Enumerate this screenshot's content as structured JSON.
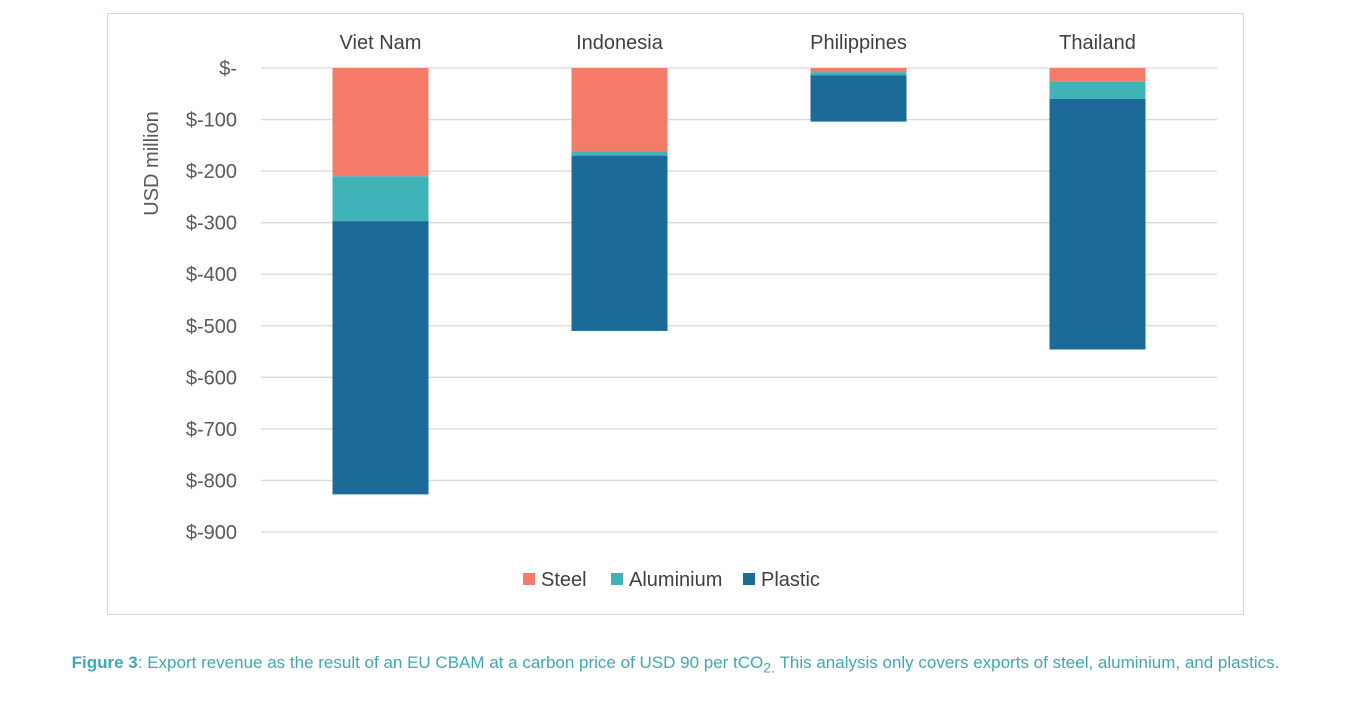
{
  "chart_data": {
    "type": "bar",
    "stacked": true,
    "categories": [
      "Viet Nam",
      "Indonesia",
      "Philippines",
      "Thailand"
    ],
    "category_axis_position": "top",
    "series": [
      {
        "name": "Steel",
        "color": "#f47b67",
        "values": [
          -210,
          -162,
          -8,
          -27
        ]
      },
      {
        "name": "Aluminium",
        "color": "#40b3b8",
        "values": [
          -87,
          -8,
          -6,
          -33
        ]
      },
      {
        "name": "Plastic",
        "color": "#1b6a97",
        "values": [
          -530,
          -340,
          -90,
          -486
        ]
      }
    ],
    "ylabel": "USD million",
    "ylim": [
      -900,
      0
    ],
    "y_ticks": [
      0,
      -100,
      -200,
      -300,
      -400,
      -500,
      -600,
      -700,
      -800,
      -900
    ],
    "y_tick_labels": [
      "$-",
      "$-100",
      "$-200",
      "$-300",
      "$-400",
      "$-500",
      "$-600",
      "$-700",
      "$-800",
      "$-900"
    ],
    "grid": true,
    "legend_position": "bottom"
  },
  "caption": {
    "label": "Figure 3",
    "text_before_sub": ": Export revenue as the result of an EU CBAM at a carbon price of USD 90 per tCO",
    "subscript": "2.",
    "text_after_sub": " This analysis only covers exports of steel, aluminium, and plastics."
  }
}
